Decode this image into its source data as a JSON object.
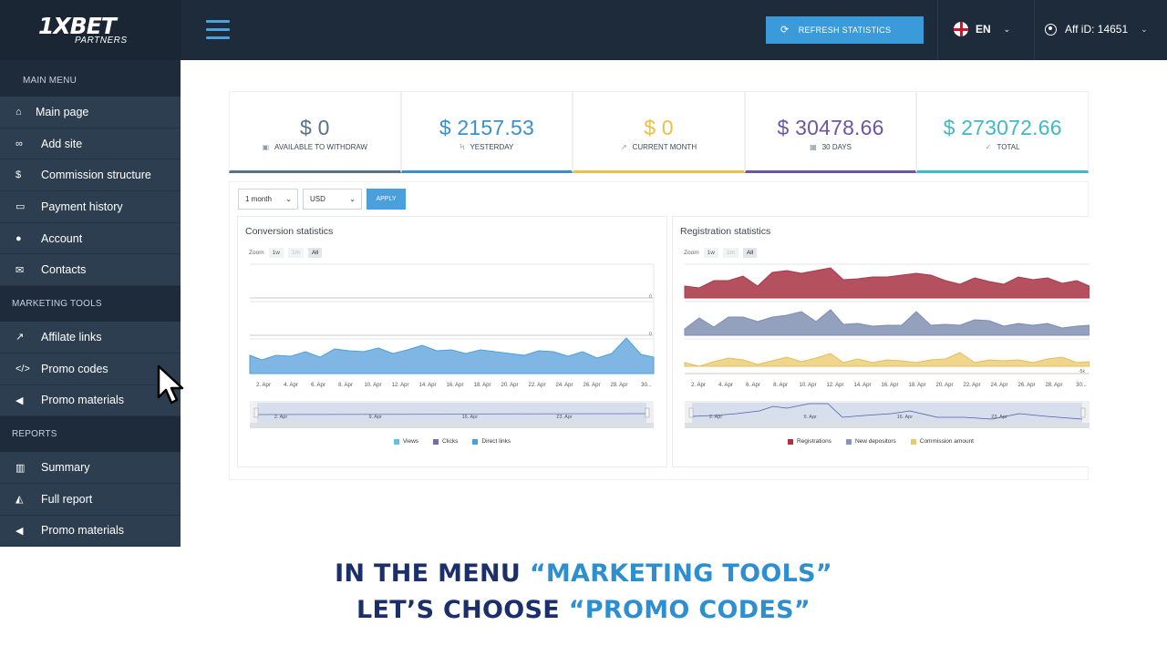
{
  "brand": {
    "logo": "1XBET",
    "sub": "PARTNERS"
  },
  "header": {
    "refresh_label": "REFRESH STATISTICS",
    "language": "EN",
    "affiliate": "Aff iD: 14651"
  },
  "sidebar": {
    "main_menu_title": "MAIN MENU",
    "main_items": [
      {
        "label": "Main page",
        "icon": "home-icon"
      },
      {
        "label": "Add site",
        "icon": "link-icon"
      },
      {
        "label": "Commission structure",
        "icon": "dollar-icon"
      },
      {
        "label": "Payment history",
        "icon": "money-icon"
      },
      {
        "label": "Account",
        "icon": "user-icon"
      },
      {
        "label": "Contacts",
        "icon": "envelope-icon"
      }
    ],
    "marketing_title": "MARKETING TOOLS",
    "marketing_items": [
      {
        "label": "Affilate links",
        "icon": "external-link-icon"
      },
      {
        "label": "Promo codes",
        "icon": "code-icon"
      },
      {
        "label": "Promo materials",
        "icon": "megaphone-icon"
      }
    ],
    "reports_title": "REPORTS",
    "report_items": [
      {
        "label": "Summary",
        "icon": "bar-chart-icon"
      },
      {
        "label": "Full report",
        "icon": "area-chart-icon"
      },
      {
        "label": "Promo materials",
        "icon": "megaphone-icon"
      }
    ]
  },
  "stats": [
    {
      "value": "$ 0",
      "label": "AVAILABLE TO WITHDRAW",
      "color": "#5b7186"
    },
    {
      "value": "$ 2157.53",
      "label": "YESTERDAY",
      "color": "#3b8fcf"
    },
    {
      "value": "$ 0",
      "label": "CURRENT MONTH",
      "color": "#e9c04a"
    },
    {
      "value": "$ 30478.66",
      "label": "30 DAYS",
      "color": "#6b56a0"
    },
    {
      "value": "$ 273072.66",
      "label": "TOTAL",
      "color": "#3fb8c7"
    }
  ],
  "filter": {
    "period": "1 month",
    "currency": "USD",
    "apply": "APPLY"
  },
  "conversion_chart": {
    "title": "Conversion statistics",
    "zoom_label": "Zoom",
    "zoom_options": [
      "1w",
      "1m",
      "All"
    ],
    "y_label": "0",
    "x_ticks": [
      "2. Apr",
      "4. Apr",
      "6. Apr",
      "8. Apr",
      "10. Apr",
      "12. Apr",
      "14. Apr",
      "16. Apr",
      "18. Apr",
      "20. Apr",
      "22. Apr",
      "24. Apr",
      "26. Apr",
      "28. Apr",
      "30..."
    ],
    "nav_ticks": [
      "2. Apr",
      "9. Apr",
      "16. Apr",
      "23. Apr"
    ],
    "legend": [
      {
        "name": "Views",
        "color": "#5bc4e0"
      },
      {
        "name": "Clicks",
        "color": "#7a68b0"
      },
      {
        "name": "Direct links",
        "color": "#4a9fdd"
      }
    ]
  },
  "registration_chart": {
    "title": "Registration statistics",
    "zoom_label": "Zoom",
    "zoom_options": [
      "1w",
      "1m",
      "All"
    ],
    "y_label": "-5k",
    "x_ticks": [
      "2. Apr",
      "4. Apr",
      "6. Apr",
      "8. Apr",
      "10. Apr",
      "12. Apr",
      "14. Apr",
      "16. Apr",
      "18. Apr",
      "20. Apr",
      "22. Apr",
      "24. Apr",
      "26. Apr",
      "28. Apr",
      "30..."
    ],
    "nav_ticks": [
      "2. Apr",
      "9. Apr",
      "16. Apr",
      "23. Apr"
    ],
    "legend": [
      {
        "name": "Registrations",
        "color": "#b03040"
      },
      {
        "name": "New depositors",
        "color": "#8596b8"
      },
      {
        "name": "Commission amount",
        "color": "#eac86b"
      }
    ]
  },
  "caption": {
    "line1_a": "IN THE MENU ",
    "line1_b": "“MARKETING TOOLS”",
    "line2_a": "LET’S CHOOSE ",
    "line2_b": "“PROMO CODES”"
  }
}
